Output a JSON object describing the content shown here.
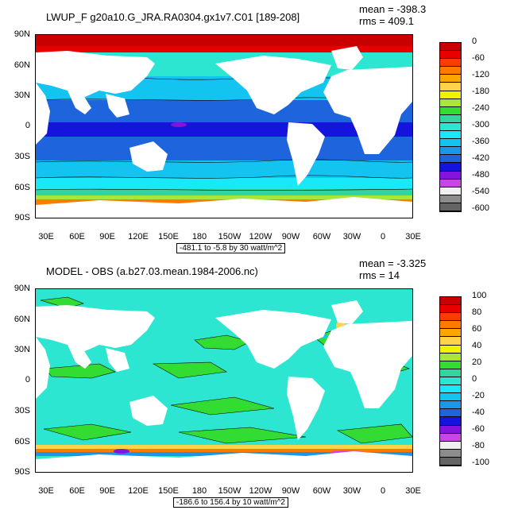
{
  "panels": [
    {
      "title": "LWUP_F g20a10.G_JRA.RA0304.gx1v7.C01 [189-208]",
      "mean": "mean = -398.3",
      "rms": "rms = 409.1",
      "lat_labels": [
        "90N",
        "60N",
        "30N",
        "0",
        "30S",
        "60S",
        "90S"
      ],
      "lon_labels": [
        "30E",
        "60E",
        "90E",
        "120E",
        "150E",
        "180",
        "150W",
        "120W",
        "90W",
        "60W",
        "30W",
        "0",
        "30E"
      ],
      "caption": "-481.1 to -5.8 by 30 watt/m^2",
      "colorbar_labels": [
        "0",
        "-60",
        "-120",
        "-180",
        "-240",
        "-300",
        "-360",
        "-420",
        "-480",
        "-540",
        "-600"
      ],
      "colorbar_colors": [
        "#c80000",
        "#e80000",
        "#ff3c00",
        "#ff7a00",
        "#ffa500",
        "#ffd24a",
        "#f2f200",
        "#a8e63c",
        "#32dc32",
        "#2fd6a0",
        "#2ce6d2",
        "#18e8f8",
        "#14c4f0",
        "#1e96e6",
        "#1e64dc",
        "#1414dc",
        "#8214dc",
        "#c846e6",
        "#f0f0f0",
        "#8c8c8c",
        "#646464"
      ]
    },
    {
      "title": "MODEL - OBS (a.b27.03.mean.1984-2006.nc)",
      "mean": "mean = -3.325",
      "rms": "rms = 14",
      "lat_labels": [
        "90N",
        "60N",
        "30N",
        "0",
        "30S",
        "60S",
        "90S"
      ],
      "lon_labels": [
        "30E",
        "60E",
        "90E",
        "120E",
        "150E",
        "180",
        "150W",
        "120W",
        "90W",
        "60W",
        "30W",
        "0",
        "30E"
      ],
      "caption": "-186.6 to 156.4 by 10 watt/m^2",
      "colorbar_labels": [
        "100",
        "80",
        "60",
        "40",
        "20",
        "0",
        "-20",
        "-40",
        "-60",
        "-80",
        "-100"
      ],
      "colorbar_colors": [
        "#c80000",
        "#e80000",
        "#ff3c00",
        "#ff7a00",
        "#ffa500",
        "#ffd24a",
        "#f2f200",
        "#a8e63c",
        "#32dc32",
        "#2fd6a0",
        "#2ce6d2",
        "#18e8f8",
        "#14c4f0",
        "#1e96e6",
        "#1e64dc",
        "#1414dc",
        "#8214dc",
        "#c846e6",
        "#f0f0f0",
        "#8c8c8c",
        "#646464"
      ]
    }
  ]
}
